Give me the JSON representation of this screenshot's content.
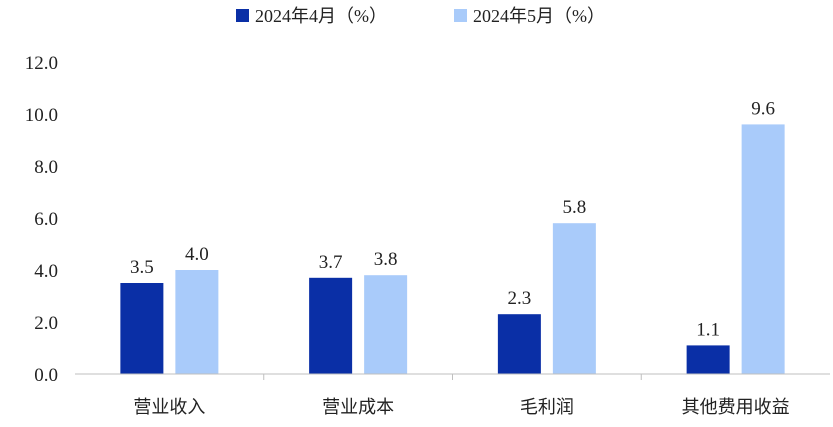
{
  "chart_data": {
    "type": "bar",
    "categories": [
      "营业收入",
      "营业成本",
      "毛利润",
      "其他费用收益"
    ],
    "series": [
      {
        "name": "2024年4月（%）",
        "values": [
          3.5,
          3.7,
          2.3,
          1.1
        ],
        "color": "#0A2FA6"
      },
      {
        "name": "2024年5月（%）",
        "values": [
          4.0,
          3.8,
          5.8,
          9.6
        ],
        "color": "#A9CBFA"
      }
    ],
    "yticks": [
      "0.0",
      "2.0",
      "4.0",
      "6.0",
      "8.0",
      "10.0",
      "12.0"
    ],
    "ylim": [
      0,
      12
    ],
    "legend_position": "top-center",
    "grid": false,
    "data_labels": [
      [
        "3.5",
        "3.7",
        "2.3",
        "1.1"
      ],
      [
        "4.0",
        "3.8",
        "5.8",
        "9.6"
      ]
    ]
  }
}
